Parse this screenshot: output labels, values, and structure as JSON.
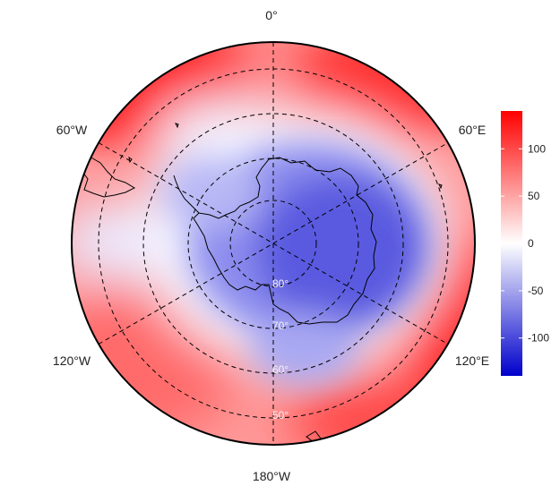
{
  "map": {
    "projection": "south-polar-stereographic",
    "longitude_labels": {
      "top": "0°",
      "bottom": "180°W",
      "upper_left": "60°W",
      "upper_right": "60°E",
      "lower_left": "120°W",
      "lower_right": "120°E"
    },
    "latitude_labels": [
      "80°",
      "70°",
      "60°",
      "50°"
    ],
    "colors": {
      "high": "#ff0000",
      "mid": "#ffffff",
      "low": "#0000cc",
      "graticule": "#000000",
      "coastline": "#000000"
    }
  },
  "colorbar": {
    "min": -140,
    "max": 140,
    "ticks": [
      "100",
      "50",
      "0",
      "-50",
      "-100"
    ],
    "tick_values": [
      100,
      50,
      0,
      -50,
      -100
    ]
  }
}
